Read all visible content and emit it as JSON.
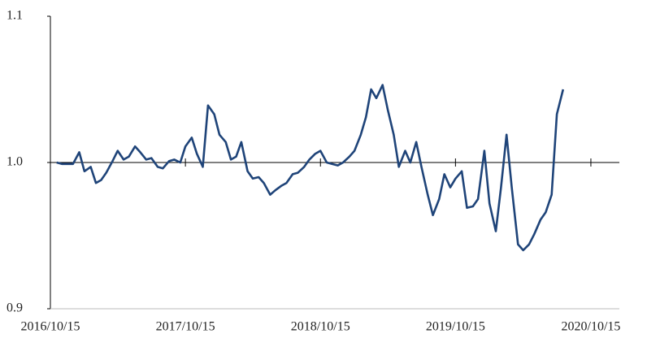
{
  "chart_data": {
    "type": "line",
    "x": [
      "2016/11/01",
      "2016/11/15",
      "2016/12/01",
      "2016/12/15",
      "2017/01/01",
      "2017/01/15",
      "2017/02/01",
      "2017/02/15",
      "2017/03/01",
      "2017/03/15",
      "2017/04/01",
      "2017/04/15",
      "2017/05/01",
      "2017/05/15",
      "2017/06/01",
      "2017/06/15",
      "2017/07/01",
      "2017/07/15",
      "2017/08/01",
      "2017/08/15",
      "2017/09/01",
      "2017/09/15",
      "2017/10/01",
      "2017/10/15",
      "2017/11/01",
      "2017/11/15",
      "2017/12/01",
      "2017/12/15",
      "2018/01/01",
      "2018/01/15",
      "2018/02/01",
      "2018/02/15",
      "2018/03/01",
      "2018/03/15",
      "2018/04/01",
      "2018/04/15",
      "2018/05/01",
      "2018/05/15",
      "2018/06/01",
      "2018/06/15",
      "2018/07/01",
      "2018/07/15",
      "2018/08/01",
      "2018/08/15",
      "2018/09/01",
      "2018/09/15",
      "2018/10/01",
      "2018/10/15",
      "2018/11/01",
      "2018/11/15",
      "2018/12/01",
      "2018/12/15",
      "2019/01/01",
      "2019/01/15",
      "2019/02/01",
      "2019/02/15",
      "2019/03/01",
      "2019/03/15",
      "2019/04/01",
      "2019/04/15",
      "2019/05/01",
      "2019/05/15",
      "2019/06/01",
      "2019/06/15",
      "2019/07/01",
      "2019/07/15",
      "2019/08/01",
      "2019/08/15",
      "2019/09/01",
      "2019/09/15",
      "2019/10/01",
      "2019/10/15",
      "2019/11/01",
      "2019/11/15",
      "2019/12/01",
      "2019/12/15",
      "2020/01/01",
      "2020/01/15",
      "2020/02/01",
      "2020/02/15",
      "2020/03/01",
      "2020/03/15",
      "2020/04/01",
      "2020/04/15",
      "2020/05/01",
      "2020/05/15",
      "2020/06/01",
      "2020/06/15",
      "2020/07/01",
      "2020/07/15",
      "2020/08/01"
    ],
    "series": [
      {
        "color": "#1f4479",
        "values": [
          1.0,
          0.999,
          0.999,
          0.999,
          1.007,
          0.994,
          0.997,
          0.986,
          0.988,
          0.993,
          1.001,
          1.008,
          1.002,
          1.004,
          1.011,
          1.007,
          1.002,
          1.003,
          0.997,
          0.996,
          1.001,
          1.002,
          1.0,
          1.011,
          1.017,
          1.006,
          0.997,
          1.039,
          1.033,
          1.019,
          1.014,
          1.002,
          1.004,
          1.014,
          0.994,
          0.989,
          0.99,
          0.986,
          0.978,
          0.981,
          0.984,
          0.986,
          0.992,
          0.993,
          0.997,
          1.002,
          1.006,
          1.008,
          1.0,
          0.999,
          0.998,
          1.0,
          1.004,
          1.008,
          1.019,
          1.031,
          1.05,
          1.044,
          1.053,
          1.036,
          1.019,
          0.997,
          1.008,
          1.0,
          1.014,
          0.997,
          0.978,
          0.964,
          0.975,
          0.992,
          0.983,
          0.989,
          0.994,
          0.969,
          0.97,
          0.975,
          1.008,
          0.972,
          0.953,
          0.983,
          1.019,
          0.983,
          0.944,
          0.94,
          0.944,
          0.951,
          0.961,
          0.966,
          0.978,
          1.033,
          1.05
        ]
      }
    ],
    "xlim": [
      "2016/10/15",
      "2020/12/31"
    ],
    "xticks": [
      "2016/10/15",
      "2017/10/15",
      "2018/10/15",
      "2019/10/15",
      "2020/10/15"
    ],
    "ylim": [
      0.9,
      1.1
    ],
    "yticks": [
      0.9,
      {
        "value": 1,
        "label": "1.0"
      },
      1.1
    ]
  }
}
